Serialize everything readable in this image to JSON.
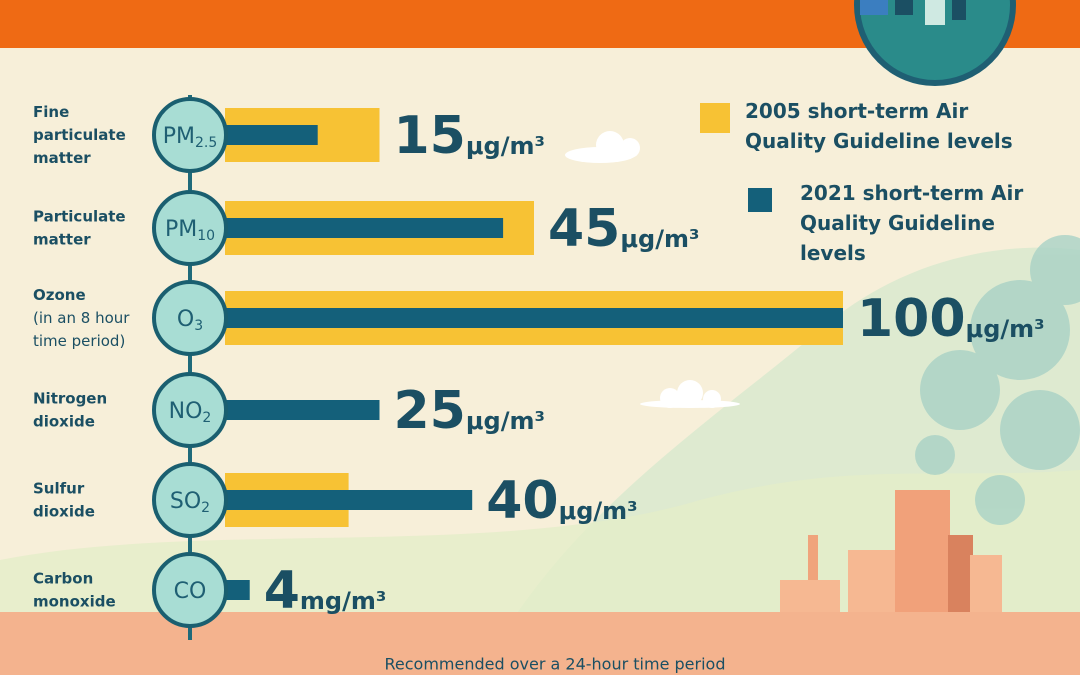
{
  "chart_data": {
    "type": "bar",
    "categories": [
      "Fine particulate matter",
      "Particulate matter",
      "Ozone",
      "Nitrogen dioxide",
      "Sulfur dioxide",
      "Carbon monoxide"
    ],
    "category_notes": [
      null,
      null,
      "(in an 8 hour time period)",
      null,
      null,
      null
    ],
    "symbols": [
      {
        "base": "PM",
        "sub": "2.5"
      },
      {
        "base": "PM",
        "sub": "10"
      },
      {
        "base": "O",
        "sub": "3"
      },
      {
        "base": "NO",
        "sub": "2"
      },
      {
        "base": "SO",
        "sub": "2"
      },
      {
        "base": "CO",
        "sub": null
      }
    ],
    "units": [
      "μg/m³",
      "μg/m³",
      "μg/m³",
      "μg/m³",
      "μg/m³",
      "mg/m³"
    ],
    "series": [
      {
        "name": "2005 short-term Air Quality Guideline levels",
        "color": "#f7c234",
        "values": [
          25,
          50,
          100,
          null,
          20,
          null
        ]
      },
      {
        "name": "2021 short-term Air Quality Guideline levels",
        "color": "#14607a",
        "values": [
          15,
          45,
          100,
          25,
          40,
          4
        ]
      }
    ],
    "labeled_series": 1,
    "footnote": "Recommended over a 24-hour time period"
  }
}
